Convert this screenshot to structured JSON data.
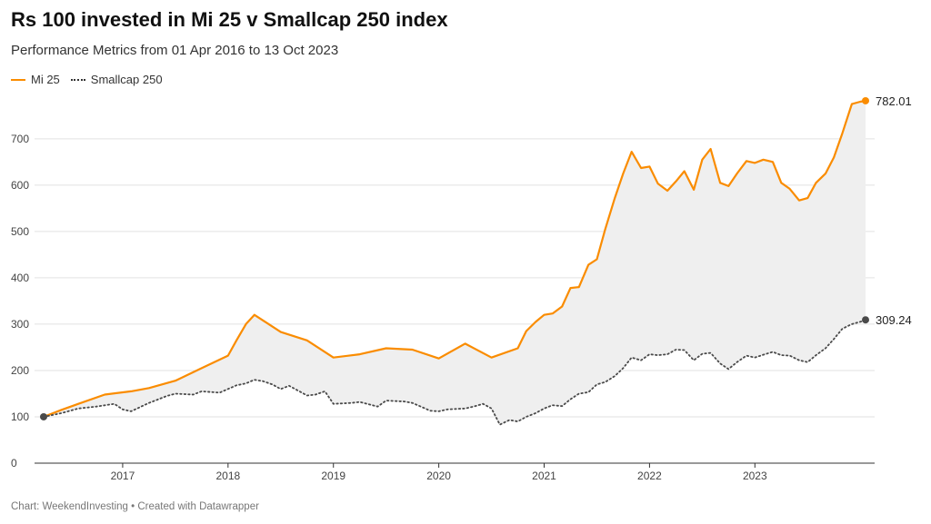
{
  "title": "Rs 100 invested in Mi 25 v Smallcap 250 index",
  "subtitle": "Performance Metrics from 01 Apr 2016 to 13 Oct 2023",
  "footer": "Chart: WeekendInvesting • Created with Datawrapper",
  "colors": {
    "mi25": "#fa8c00",
    "smallcap": "#4a4a4a",
    "fill": "#efefef"
  },
  "chart_data": {
    "type": "line",
    "title": "Rs 100 invested in Mi 25 v Smallcap 250 index",
    "subtitle": "Performance Metrics from 01 Apr 2016 to 13 Oct 2023",
    "xlabel": "",
    "ylabel": "",
    "xlim": [
      2016.25,
      2023.95
    ],
    "ylim": [
      0,
      780
    ],
    "y_ticks": [
      0,
      100,
      200,
      300,
      400,
      500,
      600,
      700
    ],
    "x_ticks": [
      2017,
      2018,
      2019,
      2020,
      2021,
      2022,
      2023
    ],
    "grid": true,
    "legend_position": "top-left",
    "shaded_area_between_series": true,
    "series": [
      {
        "name": "Mi 25",
        "style": "solid",
        "end_value": "782.01",
        "points": [
          [
            2016.25,
            100
          ],
          [
            2016.42,
            115
          ],
          [
            2016.58,
            128
          ],
          [
            2016.83,
            148
          ],
          [
            2017.08,
            155
          ],
          [
            2017.25,
            162
          ],
          [
            2017.5,
            178
          ],
          [
            2017.75,
            205
          ],
          [
            2018.0,
            232
          ],
          [
            2018.08,
            265
          ],
          [
            2018.17,
            300
          ],
          [
            2018.25,
            320
          ],
          [
            2018.5,
            283
          ],
          [
            2018.75,
            265
          ],
          [
            2019.0,
            228
          ],
          [
            2019.25,
            235
          ],
          [
            2019.5,
            248
          ],
          [
            2019.75,
            245
          ],
          [
            2020.0,
            226
          ],
          [
            2020.25,
            258
          ],
          [
            2020.5,
            228
          ],
          [
            2020.75,
            248
          ],
          [
            2020.83,
            285
          ],
          [
            2020.92,
            305
          ],
          [
            2021.0,
            320
          ],
          [
            2021.08,
            323
          ],
          [
            2021.17,
            338
          ],
          [
            2021.25,
            378
          ],
          [
            2021.33,
            380
          ],
          [
            2021.42,
            428
          ],
          [
            2021.5,
            440
          ],
          [
            2021.58,
            505
          ],
          [
            2021.67,
            572
          ],
          [
            2021.75,
            625
          ],
          [
            2021.83,
            672
          ],
          [
            2021.92,
            637
          ],
          [
            2022.0,
            640
          ],
          [
            2022.08,
            603
          ],
          [
            2022.17,
            588
          ],
          [
            2022.25,
            608
          ],
          [
            2022.33,
            630
          ],
          [
            2022.42,
            590
          ],
          [
            2022.5,
            655
          ],
          [
            2022.58,
            678
          ],
          [
            2022.67,
            605
          ],
          [
            2022.75,
            598
          ],
          [
            2022.83,
            625
          ],
          [
            2022.92,
            652
          ],
          [
            2023.0,
            648
          ],
          [
            2023.08,
            655
          ],
          [
            2023.17,
            650
          ],
          [
            2023.25,
            605
          ],
          [
            2023.33,
            592
          ],
          [
            2023.42,
            567
          ],
          [
            2023.5,
            572
          ],
          [
            2023.58,
            605
          ],
          [
            2023.67,
            625
          ],
          [
            2023.75,
            660
          ],
          [
            2023.83,
            712
          ],
          [
            2023.92,
            775
          ],
          [
            2024.0,
            780
          ],
          [
            2024.05,
            782.01
          ]
        ]
      },
      {
        "name": "Smallcap 250",
        "style": "dotted",
        "end_value": "309.24",
        "points": [
          [
            2016.25,
            100
          ],
          [
            2016.42,
            108
          ],
          [
            2016.58,
            118
          ],
          [
            2016.75,
            122
          ],
          [
            2016.92,
            128
          ],
          [
            2017.0,
            116
          ],
          [
            2017.08,
            112
          ],
          [
            2017.25,
            130
          ],
          [
            2017.42,
            145
          ],
          [
            2017.5,
            150
          ],
          [
            2017.67,
            148
          ],
          [
            2017.75,
            155
          ],
          [
            2017.92,
            152
          ],
          [
            2018.08,
            168
          ],
          [
            2018.17,
            172
          ],
          [
            2018.25,
            180
          ],
          [
            2018.33,
            177
          ],
          [
            2018.42,
            170
          ],
          [
            2018.5,
            160
          ],
          [
            2018.58,
            167
          ],
          [
            2018.75,
            146
          ],
          [
            2018.83,
            148
          ],
          [
            2018.92,
            155
          ],
          [
            2019.0,
            128
          ],
          [
            2019.17,
            130
          ],
          [
            2019.25,
            132
          ],
          [
            2019.42,
            122
          ],
          [
            2019.5,
            135
          ],
          [
            2019.67,
            133
          ],
          [
            2019.75,
            130
          ],
          [
            2019.92,
            113
          ],
          [
            2020.0,
            112
          ],
          [
            2020.08,
            116
          ],
          [
            2020.25,
            118
          ],
          [
            2020.33,
            122
          ],
          [
            2020.42,
            128
          ],
          [
            2020.5,
            118
          ],
          [
            2020.58,
            83
          ],
          [
            2020.67,
            93
          ],
          [
            2020.75,
            90
          ],
          [
            2020.83,
            100
          ],
          [
            2020.92,
            108
          ],
          [
            2021.0,
            118
          ],
          [
            2021.08,
            125
          ],
          [
            2021.17,
            123
          ],
          [
            2021.25,
            138
          ],
          [
            2021.33,
            150
          ],
          [
            2021.42,
            153
          ],
          [
            2021.5,
            170
          ],
          [
            2021.58,
            175
          ],
          [
            2021.67,
            188
          ],
          [
            2021.75,
            205
          ],
          [
            2021.83,
            228
          ],
          [
            2021.92,
            222
          ],
          [
            2022.0,
            235
          ],
          [
            2022.08,
            233
          ],
          [
            2022.17,
            235
          ],
          [
            2022.25,
            245
          ],
          [
            2022.33,
            244
          ],
          [
            2022.42,
            222
          ],
          [
            2022.5,
            236
          ],
          [
            2022.58,
            238
          ],
          [
            2022.67,
            215
          ],
          [
            2022.75,
            203
          ],
          [
            2022.83,
            218
          ],
          [
            2022.92,
            232
          ],
          [
            2023.0,
            228
          ],
          [
            2023.08,
            234
          ],
          [
            2023.17,
            240
          ],
          [
            2023.25,
            233
          ],
          [
            2023.33,
            232
          ],
          [
            2023.42,
            222
          ],
          [
            2023.5,
            218
          ],
          [
            2023.58,
            233
          ],
          [
            2023.67,
            248
          ],
          [
            2023.75,
            268
          ],
          [
            2023.83,
            290
          ],
          [
            2023.92,
            300
          ],
          [
            2024.0,
            305
          ],
          [
            2024.05,
            309.24
          ]
        ]
      }
    ]
  }
}
